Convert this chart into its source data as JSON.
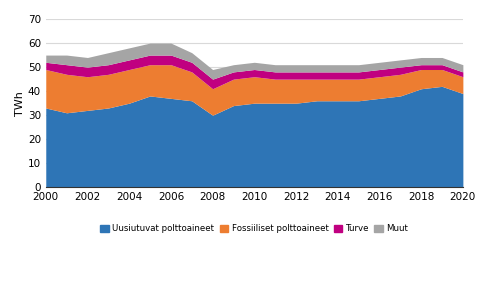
{
  "years": [
    2000,
    2001,
    2002,
    2003,
    2004,
    2005,
    2006,
    2007,
    2008,
    2009,
    2010,
    2011,
    2012,
    2013,
    2014,
    2015,
    2016,
    2017,
    2018,
    2019,
    2020
  ],
  "uusiutuvat": [
    33,
    31,
    32,
    33,
    35,
    38,
    37,
    36,
    30,
    34,
    35,
    35,
    35,
    36,
    36,
    36,
    37,
    38,
    41,
    42,
    39
  ],
  "fossiiliset": [
    16,
    16,
    14,
    14,
    14,
    13,
    14,
    12,
    11,
    11,
    11,
    10,
    10,
    9,
    9,
    9,
    9,
    9,
    8,
    7,
    7
  ],
  "turve": [
    3,
    4,
    4,
    4,
    4,
    4,
    4,
    4,
    4,
    3,
    3,
    3,
    3,
    3,
    3,
    3,
    3,
    3,
    2,
    2,
    2
  ],
  "muut": [
    3,
    4,
    4,
    5,
    5,
    5,
    5,
    4,
    4,
    3,
    3,
    3,
    3,
    3,
    3,
    3,
    3,
    3,
    3,
    3,
    3
  ],
  "colors": {
    "uusiutuvat": "#2e75b6",
    "fossiiliset": "#ed7d31",
    "turve": "#c00080",
    "muut": "#a5a5a5"
  },
  "ylabel": "TWh",
  "ylim": [
    0,
    70
  ],
  "yticks": [
    0,
    10,
    20,
    30,
    40,
    50,
    60,
    70
  ],
  "legend_labels": [
    "Uusiutuvat polttoaineet",
    "Fossiiliset polttoaineet",
    "Turve",
    "Muut"
  ],
  "background_color": "#ffffff",
  "grid_color": "#d9d9d9"
}
